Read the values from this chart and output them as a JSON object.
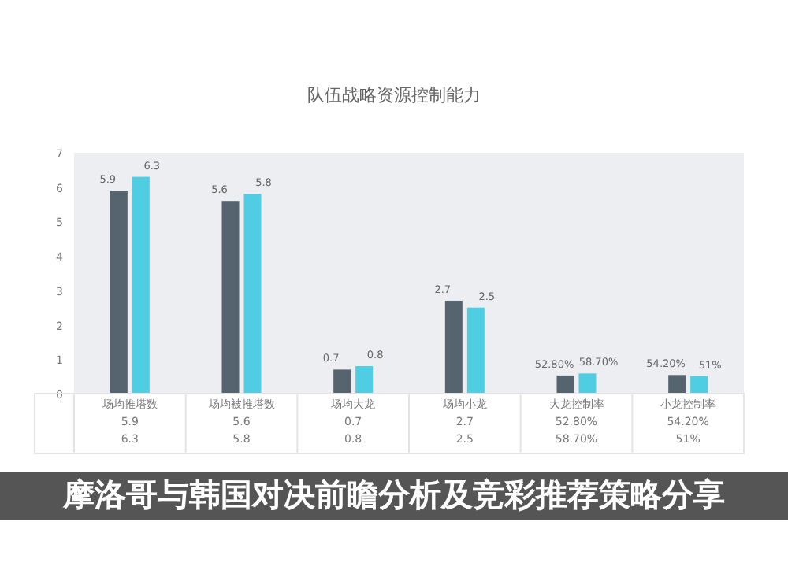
{
  "chart_data": {
    "type": "bar",
    "title": "队伍战略资源控制能力",
    "categories": [
      "场均推塔数",
      "场均被推塔数",
      "场均大龙",
      "场均小龙",
      "大龙控制率",
      "小龙控制率"
    ],
    "series": [
      {
        "color": "#56646f",
        "values": [
          5.9,
          5.6,
          0.7,
          2.7,
          0.528,
          0.542
        ],
        "value_labels": [
          "5.9",
          "5.6",
          "0.7",
          "2.7",
          "52.80%",
          "54.20%"
        ]
      },
      {
        "color": "#4ecde3",
        "values": [
          6.3,
          5.8,
          0.8,
          2.5,
          0.587,
          0.51
        ],
        "value_labels": [
          "6.3",
          "5.8",
          "0.8",
          "2.5",
          "58.70%",
          "51%"
        ]
      }
    ],
    "ylim": [
      0,
      7
    ],
    "yticks": [
      0,
      1,
      2,
      3,
      4,
      5,
      6,
      7
    ],
    "annotations": [
      "摩洛哥与韩国对决前瞻分析及竞彩推荐策略分享"
    ]
  }
}
